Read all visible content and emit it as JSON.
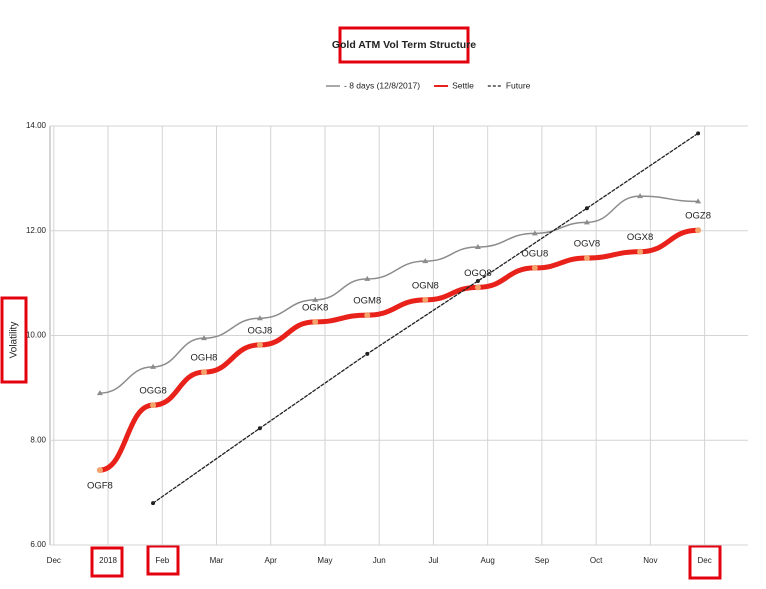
{
  "chart_data": {
    "type": "line",
    "title": "Gold ATM Vol Term Structure",
    "y_label": "Volatility",
    "xlim": [
      -0.07,
      12.8
    ],
    "xticks": [
      {
        "value": 0,
        "label": "Dec"
      },
      {
        "value": 1,
        "label": "2018"
      },
      {
        "value": 2,
        "label": "Feb"
      },
      {
        "value": 3,
        "label": "Mar"
      },
      {
        "value": 4,
        "label": "Apr"
      },
      {
        "value": 5,
        "label": "May"
      },
      {
        "value": 6,
        "label": "Jun"
      },
      {
        "value": 7,
        "label": "Jul"
      },
      {
        "value": 8,
        "label": "Aug"
      },
      {
        "value": 9,
        "label": "Sep"
      },
      {
        "value": 10,
        "label": "Oct"
      },
      {
        "value": 11,
        "label": "Nov"
      },
      {
        "value": 12,
        "label": "Dec"
      }
    ],
    "ylim": [
      6,
      14
    ],
    "yticks": [
      {
        "value": 6,
        "label": "6.00"
      },
      {
        "value": 8,
        "label": "8.00"
      },
      {
        "value": 10,
        "label": "10.00"
      },
      {
        "value": 12,
        "label": "12.00"
      },
      {
        "value": 14,
        "label": "14.00"
      }
    ],
    "grid": true,
    "legend": "top",
    "series": [
      {
        "name": "- 8 days (12/8/2017)",
        "color": "#8c8c8c",
        "style": "solid",
        "marker": "triangle",
        "x": [
          0.85,
          1.83,
          2.77,
          3.8,
          4.82,
          5.78,
          6.85,
          7.82,
          8.87,
          9.83,
          10.81,
          11.88
        ],
        "values": [
          8.9,
          9.4,
          9.95,
          10.33,
          10.68,
          11.08,
          11.42,
          11.69,
          11.95,
          12.16,
          12.66,
          12.56
        ]
      },
      {
        "name": "Settle",
        "color": "#e8211a",
        "style": "thick",
        "marker": "circle",
        "x": [
          0.85,
          1.83,
          2.77,
          3.8,
          4.82,
          5.78,
          6.85,
          7.82,
          8.87,
          9.83,
          10.81,
          11.88
        ],
        "values": [
          7.43,
          8.67,
          9.3,
          9.82,
          10.26,
          10.39,
          10.68,
          10.92,
          11.29,
          11.48,
          11.6,
          12.01
        ],
        "labels": [
          "OGF8",
          "OGG8",
          "OGH8",
          "OGJ8",
          "OGK8",
          "OGM8",
          "OGN8",
          "OGQ8",
          "OGU8",
          "OGV8",
          "OGX8",
          "OGZ8"
        ]
      },
      {
        "name": "Future",
        "color": "#222222",
        "style": "dashed",
        "marker": "dot",
        "x": [
          1.83,
          3.8,
          5.78,
          7.82,
          9.83,
          11.88
        ],
        "values": [
          6.8,
          8.23,
          9.65,
          11.04,
          12.43,
          13.86
        ]
      }
    ]
  }
}
